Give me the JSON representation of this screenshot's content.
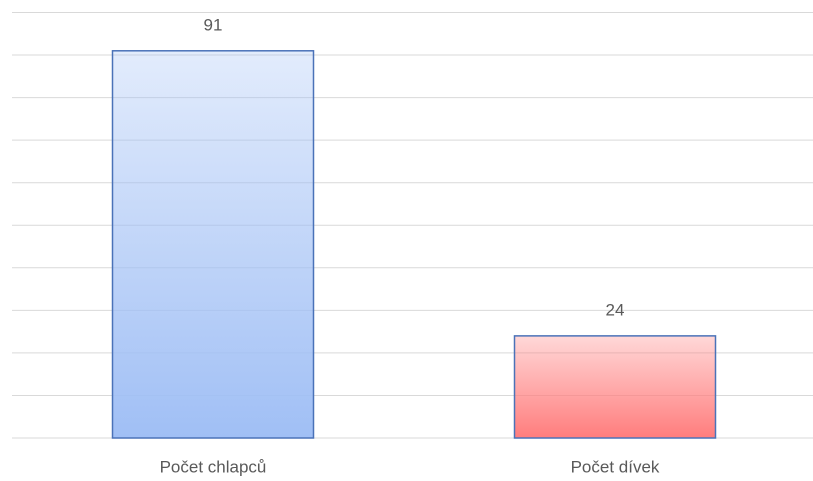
{
  "chart_data": {
    "type": "bar",
    "categories": [
      "Počet chlapců",
      "Počet dívek"
    ],
    "values": [
      91,
      24
    ],
    "colors": [
      "#a0bff5",
      "#ff7d7d"
    ],
    "edge_color": "#4a72b8",
    "ylim": [
      0,
      100
    ],
    "yticks": [
      0,
      10,
      20,
      30,
      40,
      50,
      60,
      70,
      80,
      90,
      100
    ],
    "grid": true
  }
}
